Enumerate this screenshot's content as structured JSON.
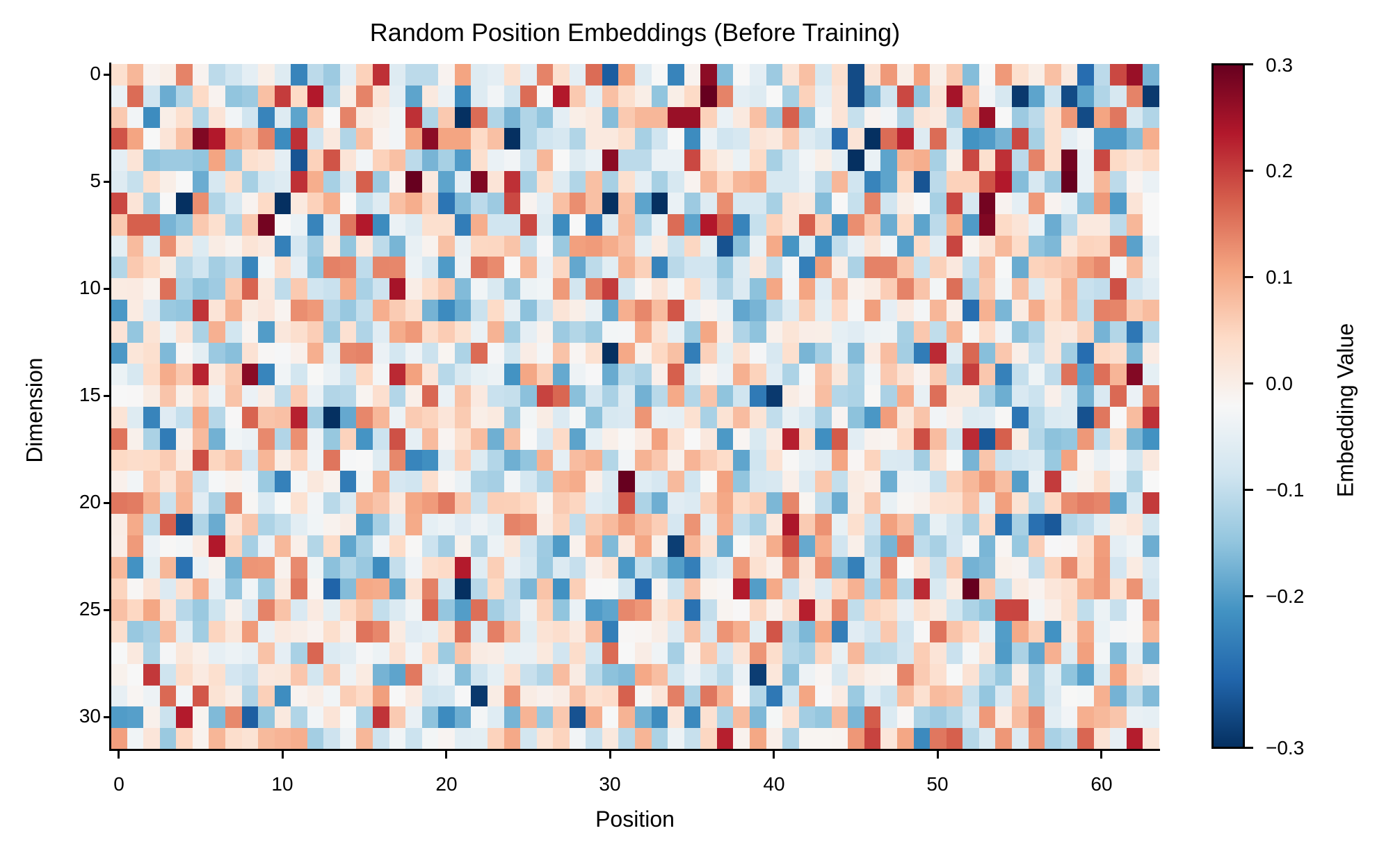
{
  "chart_data": {
    "type": "heatmap",
    "title": "Random Position Embeddings (Before Training)",
    "xlabel": "Position",
    "ylabel": "Dimension",
    "colorbar_label": "Embedding Value",
    "colormap": "RdBu_r",
    "vmin": -0.3,
    "vmax": 0.3,
    "n_rows": 32,
    "n_cols": 64,
    "x_ticks": [
      0,
      10,
      20,
      30,
      40,
      50,
      60
    ],
    "y_ticks": [
      0,
      5,
      10,
      15,
      20,
      25,
      30
    ],
    "colorbar_ticks": [
      "0.3",
      "0.2",
      "0.1",
      "0.0",
      "−0.1",
      "−0.2",
      "−0.3"
    ],
    "colorbar_tick_values": [
      0.3,
      0.2,
      0.1,
      0.0,
      -0.1,
      -0.2,
      -0.3
    ],
    "grid": false,
    "legend": "colorbar-right",
    "rows_observed": [
      [
        0.05,
        0.1,
        0.01,
        0.02,
        0.15,
        0.01,
        -0.08,
        -0.06,
        -0.03,
        0.02,
        -0.04,
        -0.2,
        -0.08,
        -0.11,
        -0.03,
        0.07,
        0.22,
        -0.04,
        -0.08,
        -0.08,
        0.01,
        0.12,
        -0.04,
        -0.03,
        0.05,
        -0.03,
        0.15,
        0.05,
        -0.03,
        0.17,
        -0.25,
        0.12,
        -0.04,
        0.0,
        -0.2,
        0.01,
        0.27,
        -0.13,
        0.0,
        -0.03,
        -0.11,
        0.04,
        0.09,
        -0.05,
        0.05,
        -0.27,
        0.04,
        0.13,
        0.02,
        0.12,
        0.02,
        0.08,
        -0.13,
        0.0,
        0.13,
        0.05,
        0.02,
        0.09,
        0.03,
        -0.23,
        -0.08,
        0.2,
        0.26,
        -0.14
      ],
      [
        -0.02,
        0.17,
        -0.06,
        -0.15,
        -0.09,
        0.06,
        0.01,
        -0.12,
        -0.11,
        0.09,
        0.21,
        0.06,
        0.24,
        -0.09,
        0.02,
        0.15,
        0.04,
        -0.03,
        -0.16,
        0.03,
        -0.02,
        -0.19,
        -0.04,
        -0.01,
        -0.06,
        0.17,
        0.0,
        0.24,
        0.08,
        -0.03,
        0.09,
        0.05,
        0.02,
        -0.12,
        0.02,
        0.06,
        0.3,
        0.15,
        -0.03,
        -0.04,
        0.0,
        -0.1,
        0.07,
        -0.03,
        0.04,
        -0.27,
        -0.14,
        -0.06,
        0.2,
        -0.12,
        0.04,
        0.25,
        0.09,
        -0.01,
        -0.05,
        -0.29,
        -0.16,
        -0.06,
        -0.27,
        -0.16,
        -0.09,
        -0.05,
        0.15,
        -0.29
      ],
      [
        0.08,
        -0.01,
        -0.19,
        0.02,
        0.05,
        -0.09,
        0.04,
        -0.01,
        -0.06,
        -0.2,
        -0.04,
        -0.16,
        0.08,
        0.0,
        0.15,
        0.03,
        0.02,
        -0.01,
        0.22,
        -0.09,
        0.08,
        -0.3,
        0.17,
        -0.09,
        -0.14,
        -0.09,
        -0.12,
        -0.03,
        0.02,
        0.03,
        -0.13,
        0.08,
        0.1,
        0.1,
        0.26,
        0.26,
        0.07,
        -0.02,
        0.03,
        0.09,
        -0.11,
        0.18,
        -0.12,
        -0.01,
        0.04,
        -0.07,
        0.01,
        -0.01,
        -0.09,
        0.04,
        0.03,
        -0.09,
        0.11,
        0.26,
        0.0,
        -0.11,
        -0.08,
        0.05,
        0.13,
        -0.27,
        0.12,
        0.16,
        -0.05,
        -0.09
      ],
      [
        0.19,
        0.12,
        0.0,
        0.04,
        0.09,
        0.28,
        0.24,
        0.11,
        0.09,
        0.15,
        -0.19,
        0.22,
        -0.06,
        0.03,
        -0.09,
        0.09,
        0.01,
        -0.01,
        0.12,
        0.27,
        0.12,
        0.12,
        0.06,
        0.09,
        -0.3,
        -0.09,
        -0.06,
        -0.05,
        -0.09,
        0.03,
        0.03,
        0.05,
        -0.1,
        -0.06,
        0.0,
        -0.19,
        -0.02,
        -0.06,
        -0.05,
        0.04,
        0.03,
        0.08,
        -0.04,
        -0.06,
        -0.23,
        0.04,
        -0.3,
        0.17,
        0.23,
        -0.04,
        0.17,
        -0.05,
        -0.18,
        -0.17,
        -0.14,
        0.2,
        -0.1,
        0.05,
        -0.03,
        -0.01,
        -0.17,
        -0.17,
        -0.13,
        0.11
      ],
      [
        -0.03,
        0.04,
        -0.12,
        -0.11,
        -0.11,
        -0.12,
        0.12,
        -0.11,
        0.05,
        0.04,
        -0.03,
        -0.26,
        0.07,
        0.19,
        0.04,
        -0.01,
        0.07,
        0.09,
        -0.08,
        -0.14,
        -0.1,
        -0.17,
        0.05,
        -0.02,
        -0.01,
        -0.06,
        0.1,
        0.0,
        -0.04,
        -0.02,
        0.27,
        -0.08,
        -0.08,
        -0.02,
        -0.02,
        0.2,
        0.05,
        0.02,
        -0.02,
        0.06,
        -0.1,
        -0.05,
        -0.01,
        0.02,
        -0.03,
        -0.3,
        -0.02,
        -0.16,
        0.1,
        0.11,
        -0.1,
        0.02,
        0.2,
        0.05,
        0.22,
        -0.08,
        0.15,
        0.05,
        0.29,
        -0.02,
        0.2,
        0.06,
        0.04,
        0.06
      ],
      [
        -0.04,
        -0.07,
        0.05,
        0.02,
        0.0,
        -0.15,
        -0.05,
        0.05,
        -0.1,
        -0.05,
        -0.04,
        0.22,
        0.11,
        -0.1,
        -0.05,
        0.18,
        -0.11,
        0.01,
        0.3,
        0.03,
        -0.16,
        -0.03,
        0.28,
        0.04,
        0.22,
        -0.1,
        0.05,
        -0.04,
        -0.09,
        0.09,
        -0.1,
        0.05,
        -0.03,
        -0.1,
        -0.05,
        0.01,
        0.1,
        0.06,
        0.1,
        0.11,
        -0.05,
        -0.05,
        -0.02,
        -0.08,
        0.1,
        -0.06,
        -0.2,
        -0.16,
        0.06,
        -0.26,
        -0.08,
        0.07,
        0.07,
        0.19,
        0.24,
        -0.13,
        -0.05,
        -0.11,
        0.3,
        -0.02,
        0.1,
        -0.08,
        0.01,
        -0.02
      ],
      [
        0.2,
        0.04,
        -0.1,
        0.0,
        -0.3,
        0.14,
        -0.09,
        -0.05,
        0.01,
        0.06,
        -0.3,
        0.03,
        0.07,
        0.11,
        0.0,
        -0.07,
        -0.04,
        0.09,
        0.11,
        0.07,
        -0.22,
        -0.13,
        -0.08,
        -0.11,
        0.2,
        0.01,
        -0.03,
        0.09,
        0.14,
        0.09,
        -0.3,
        0.09,
        -0.16,
        -0.3,
        -0.02,
        -0.11,
        -0.04,
        0.14,
        -0.05,
        -0.05,
        -0.1,
        0.04,
        0.03,
        -0.13,
        0.0,
        -0.07,
        0.15,
        -0.06,
        0.02,
        0.0,
        -0.1,
        0.2,
        -0.05,
        0.29,
        0.01,
        -0.03,
        0.13,
        0.01,
        -0.02,
        -0.12,
        0.13,
        -0.17,
        0.04,
        0.0
      ],
      [
        0.08,
        0.18,
        0.18,
        -0.14,
        -0.12,
        0.08,
        0.05,
        -0.09,
        0.08,
        0.29,
        0.0,
        -0.02,
        -0.2,
        -0.03,
        0.16,
        0.24,
        -0.19,
        -0.02,
        -0.04,
        0.05,
        0.05,
        -0.21,
        0.11,
        -0.06,
        -0.06,
        0.2,
        -0.04,
        -0.19,
        0.0,
        -0.21,
        -0.04,
        0.1,
        -0.09,
        -0.02,
        0.17,
        -0.16,
        0.24,
        0.18,
        -0.2,
        -0.07,
        0.07,
        0.04,
        0.18,
        0.07,
        -0.19,
        0.14,
        0.08,
        -0.15,
        0.06,
        -0.16,
        -0.08,
        0.11,
        -0.17,
        0.28,
        0.06,
        0.04,
        -0.02,
        -0.15,
        -0.08,
        0.03,
        0.03,
        -0.08,
        0.1,
        0.0
      ]
    ]
  },
  "ui": {
    "title": "Random Position Embeddings (Before Training)",
    "xlabel": "Position",
    "ylabel": "Dimension",
    "colorbar_label": "Embedding Value",
    "x_tick_labels": [
      "0",
      "10",
      "20",
      "30",
      "40",
      "50",
      "60"
    ],
    "y_tick_labels": [
      "0",
      "5",
      "10",
      "15",
      "20",
      "25",
      "30"
    ],
    "cb_tick_labels": [
      "0.3",
      "0.2",
      "0.1",
      "0.0",
      "−0.1",
      "−0.2",
      "−0.3"
    ]
  }
}
